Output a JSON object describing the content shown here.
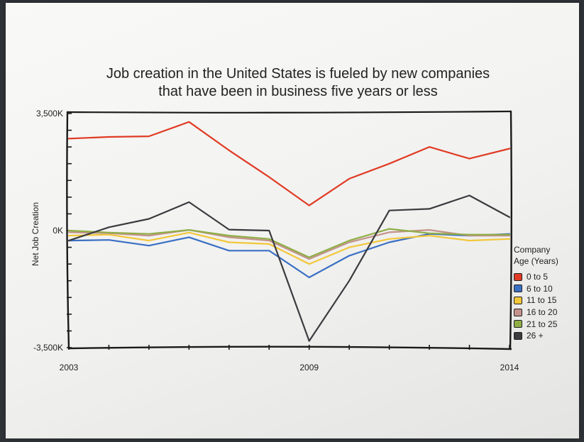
{
  "chart_data": {
    "type": "line",
    "title_lines": [
      "Job creation in the United States is fueled by new companies",
      "that have been in business five years or less"
    ],
    "ylabel": "Net Job Creation",
    "xlabel": "",
    "ylim": [
      -3500,
      3500
    ],
    "y_unit": "K",
    "y_tick_labels": [
      {
        "value": 3500,
        "label": "3,500K"
      },
      {
        "value": 0,
        "label": "0K"
      },
      {
        "value": -3500,
        "label": "-3,500K"
      }
    ],
    "xlim": [
      2003,
      2014
    ],
    "x_tick_labels": [
      {
        "value": 2003,
        "label": "2003"
      },
      {
        "value": 2009,
        "label": "2009"
      },
      {
        "value": 2014,
        "label": "2014"
      }
    ],
    "grid": false,
    "legend": {
      "title_lines": [
        "Company",
        "Age (Years)"
      ],
      "placement": "right"
    },
    "series": [
      {
        "name": "0 to 5",
        "color": "#e03b24",
        "points": [
          [
            2003,
            2750
          ],
          [
            2004,
            2800
          ],
          [
            2005,
            2820
          ],
          [
            2006,
            3250
          ],
          [
            2007,
            2400
          ],
          [
            2008,
            1600
          ],
          [
            2009,
            750
          ],
          [
            2010,
            1550
          ],
          [
            2011,
            2000
          ],
          [
            2012,
            2500
          ],
          [
            2013,
            2150
          ],
          [
            2014,
            2450
          ]
        ]
      },
      {
        "name": "6 to 10",
        "color": "#3a6fc4",
        "points": [
          [
            2003,
            -300
          ],
          [
            2004,
            -280
          ],
          [
            2005,
            -450
          ],
          [
            2006,
            -200
          ],
          [
            2007,
            -600
          ],
          [
            2008,
            -600
          ],
          [
            2009,
            -1400
          ],
          [
            2010,
            -750
          ],
          [
            2011,
            -350
          ],
          [
            2012,
            -100
          ],
          [
            2013,
            -150
          ],
          [
            2014,
            -100
          ]
        ]
      },
      {
        "name": "11 to 15",
        "color": "#f2c73a",
        "points": [
          [
            2003,
            -150
          ],
          [
            2004,
            -120
          ],
          [
            2005,
            -300
          ],
          [
            2006,
            -60
          ],
          [
            2007,
            -350
          ],
          [
            2008,
            -400
          ],
          [
            2009,
            -1000
          ],
          [
            2010,
            -500
          ],
          [
            2011,
            -250
          ],
          [
            2012,
            -150
          ],
          [
            2013,
            -300
          ],
          [
            2014,
            -250
          ]
        ]
      },
      {
        "name": "16 to 20",
        "color": "#c4928a",
        "points": [
          [
            2003,
            -50
          ],
          [
            2004,
            -80
          ],
          [
            2005,
            -150
          ],
          [
            2006,
            20
          ],
          [
            2007,
            -200
          ],
          [
            2008,
            -300
          ],
          [
            2009,
            -850
          ],
          [
            2010,
            -350
          ],
          [
            2011,
            -50
          ],
          [
            2012,
            20
          ],
          [
            2013,
            -150
          ],
          [
            2014,
            -150
          ]
        ]
      },
      {
        "name": "21 to 25",
        "color": "#8fae46",
        "points": [
          [
            2003,
            0
          ],
          [
            2004,
            -60
          ],
          [
            2005,
            -100
          ],
          [
            2006,
            20
          ],
          [
            2007,
            -150
          ],
          [
            2008,
            -250
          ],
          [
            2009,
            -800
          ],
          [
            2010,
            -300
          ],
          [
            2011,
            50
          ],
          [
            2012,
            -80
          ],
          [
            2013,
            -120
          ],
          [
            2014,
            -120
          ]
        ]
      },
      {
        "name": "26 +",
        "color": "#3b3b40",
        "points": [
          [
            2003,
            -300
          ],
          [
            2004,
            100
          ],
          [
            2005,
            350
          ],
          [
            2006,
            850
          ],
          [
            2007,
            30
          ],
          [
            2008,
            0
          ],
          [
            2009,
            -3300
          ],
          [
            2010,
            -1500
          ],
          [
            2011,
            600
          ],
          [
            2012,
            650
          ],
          [
            2013,
            1050
          ],
          [
            2014,
            400
          ]
        ]
      }
    ]
  }
}
